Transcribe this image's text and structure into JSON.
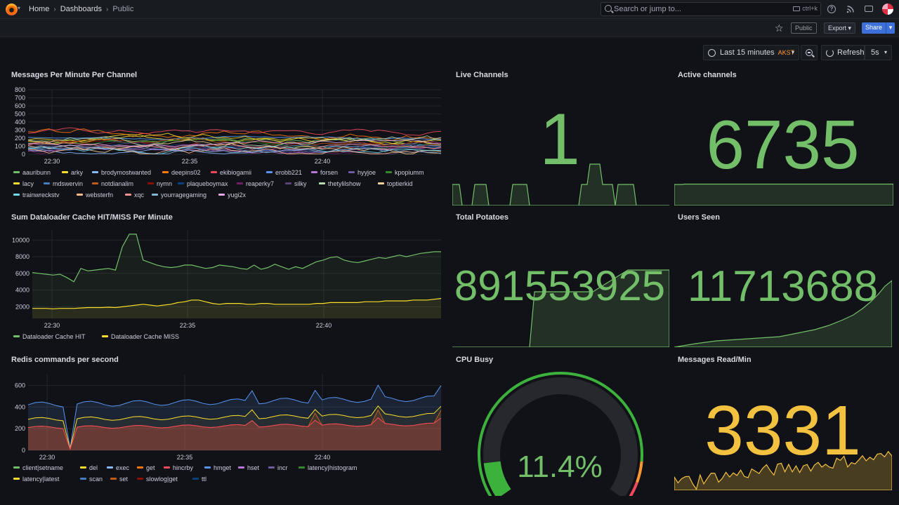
{
  "topbar": {
    "breadcrumbs": [
      "Home",
      "Dashboards",
      "Public"
    ],
    "search_placeholder": "Search or jump to...",
    "search_shortcut": "ctrl+k"
  },
  "toolbar": {
    "public_badge": "Public",
    "export_label": "Export",
    "share_label": "Share"
  },
  "timepicker": {
    "range_label": "Last 15 minutes",
    "timezone": "AKST",
    "refresh_label": "Refresh",
    "interval": "5s"
  },
  "colors": {
    "green": "#73bf69",
    "yellow": "#fade2a",
    "orange_stat": "#f2c13f",
    "background": "#111217"
  },
  "panels": {
    "messages": {
      "title": "Messages Per Minute Per Channel",
      "legend": [
        {
          "name": "aauribunn",
          "color": "#73bf69"
        },
        {
          "name": "arky",
          "color": "#fade2a"
        },
        {
          "name": "brodymostwanted",
          "color": "#8ab8ff"
        },
        {
          "name": "deepins02",
          "color": "#ff780a"
        },
        {
          "name": "ekibiogamii",
          "color": "#f2495c"
        },
        {
          "name": "erobb221",
          "color": "#5794f2"
        },
        {
          "name": "forsen",
          "color": "#b877d9"
        },
        {
          "name": "hyyjoe",
          "color": "#705da0"
        },
        {
          "name": "kpopiumm",
          "color": "#37872d"
        },
        {
          "name": "lacy",
          "color": "#fade2a"
        },
        {
          "name": "mdswervin",
          "color": "#447ebc"
        },
        {
          "name": "notdianalim",
          "color": "#c15c17"
        },
        {
          "name": "nymn",
          "color": "#890f02"
        },
        {
          "name": "plaqueboymax",
          "color": "#0a437c"
        },
        {
          "name": "reaperky7",
          "color": "#6d1f62"
        },
        {
          "name": "silky",
          "color": "#584477"
        },
        {
          "name": "thetylilshow",
          "color": "#b7dbab"
        },
        {
          "name": "toptierkid",
          "color": "#f4d598"
        },
        {
          "name": "trainwreckstv",
          "color": "#70dbed"
        },
        {
          "name": "websterfn",
          "color": "#f9ba8f"
        },
        {
          "name": "xqc",
          "color": "#f29191"
        },
        {
          "name": "yourragegaming",
          "color": "#82b5d8"
        },
        {
          "name": "yugi2x",
          "color": "#e5a8e2"
        }
      ]
    },
    "dataloader": {
      "title": "Sum Dataloader Cache HIT/MISS Per Minute",
      "legend": [
        {
          "name": "Dataloader Cache HIT",
          "color": "#73bf69"
        },
        {
          "name": "Dataloader Cache MISS",
          "color": "#fade2a"
        }
      ]
    },
    "redis": {
      "title": "Redis commands per second",
      "legend": [
        {
          "name": "client|setname",
          "color": "#73bf69"
        },
        {
          "name": "del",
          "color": "#fade2a"
        },
        {
          "name": "exec",
          "color": "#8ab8ff"
        },
        {
          "name": "get",
          "color": "#ff780a"
        },
        {
          "name": "hincrby",
          "color": "#f2495c"
        },
        {
          "name": "hmget",
          "color": "#5794f2"
        },
        {
          "name": "hset",
          "color": "#b877d9"
        },
        {
          "name": "incr",
          "color": "#705da0"
        },
        {
          "name": "latency|histogram",
          "color": "#37872d"
        },
        {
          "name": "latency|latest",
          "color": "#fade2a"
        },
        {
          "name": "scan",
          "color": "#447ebc"
        },
        {
          "name": "set",
          "color": "#c15c17"
        },
        {
          "name": "slowlog|get",
          "color": "#890f02"
        },
        {
          "name": "ttl",
          "color": "#0a437c"
        }
      ]
    },
    "live_channels": {
      "title": "Live Channels",
      "value": "1"
    },
    "active_channels": {
      "title": "Active channels",
      "value": "6735"
    },
    "total_potatoes": {
      "title": "Total Potatoes",
      "value": "891553925"
    },
    "users_seen": {
      "title": "Users Seen",
      "value": "11713688"
    },
    "cpu_busy": {
      "title": "CPU Busy",
      "value": "11.4%",
      "fraction": 0.114
    },
    "messages_read": {
      "title": "Messages Read/Min",
      "value": "3331"
    }
  },
  "chart_data": [
    {
      "type": "line",
      "title": "Messages Per Minute Per Channel",
      "x_ticks": [
        "22:30",
        "22:35",
        "22:40"
      ],
      "y_ticks": [
        0,
        100,
        200,
        300,
        400,
        500,
        600,
        700,
        800
      ],
      "ylim": [
        0,
        800
      ],
      "series_count": 23
    },
    {
      "type": "area",
      "title": "Sum Dataloader Cache HIT/MISS Per Minute",
      "x_ticks": [
        "22:30",
        "22:35",
        "22:40"
      ],
      "y_ticks": [
        2000,
        4000,
        6000,
        8000,
        10000
      ],
      "series": [
        {
          "name": "Dataloader Cache HIT",
          "values": [
            6100,
            6000,
            5900,
            5800,
            5900,
            5500,
            5000,
            6600,
            6300,
            6400,
            6500,
            6600,
            6400,
            9200,
            10700,
            10700,
            7600,
            7300,
            7000,
            6800,
            6700,
            6800,
            7000,
            7000,
            6800,
            6600,
            6700,
            7000,
            6900,
            6800,
            6600,
            6500,
            7000,
            6500,
            6700,
            7100,
            6800,
            6500,
            6800,
            6600,
            7000,
            7400,
            7600,
            7900,
            8000,
            7600,
            7400,
            7300,
            7500,
            7700,
            7900,
            7800,
            8000,
            8200,
            8000,
            8200,
            8400,
            8500,
            8600,
            8600
          ]
        },
        {
          "name": "Dataloader Cache MISS",
          "values": [
            1800,
            1800,
            1800,
            1750,
            1800,
            1800,
            1800,
            1850,
            1900,
            1900,
            1900,
            1950,
            1900,
            2000,
            2100,
            2200,
            2300,
            2200,
            2100,
            2200,
            2300,
            2500,
            2600,
            2800,
            2800,
            2600,
            2400,
            2300,
            2400,
            2400,
            2400,
            2300,
            2300,
            2400,
            2400,
            2300,
            2300,
            2300,
            2300,
            2300,
            2300,
            2400,
            2400,
            2500,
            2500,
            2500,
            2500,
            2500,
            2600,
            2600,
            2600,
            2700,
            2700,
            2700,
            2700,
            2800,
            2800,
            2800,
            2900,
            3000
          ]
        }
      ]
    },
    {
      "type": "area",
      "title": "Redis commands per second",
      "x_ticks": [
        "22:30",
        "22:35",
        "22:40"
      ],
      "y_ticks": [
        0,
        200,
        400,
        600
      ],
      "ylim": [
        0,
        700
      ],
      "series_count": 14
    }
  ]
}
